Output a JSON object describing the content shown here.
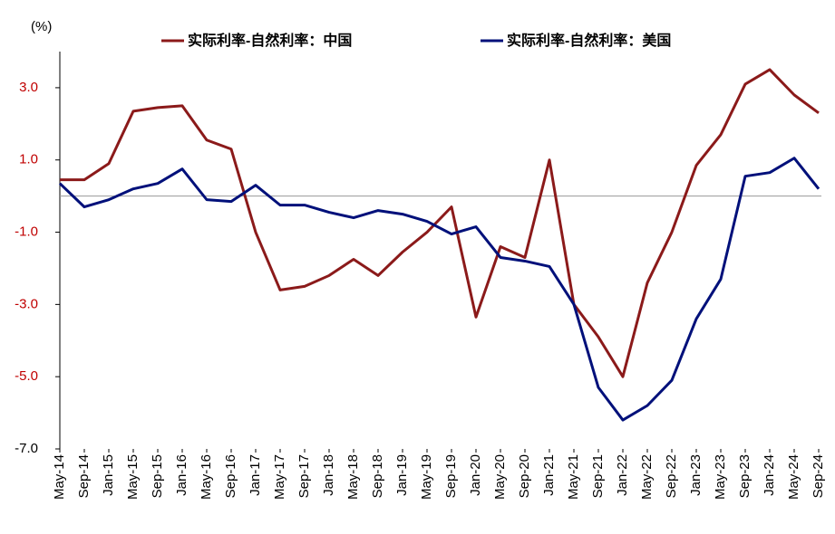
{
  "chart_data": {
    "type": "line",
    "y_unit_label": "(%)",
    "categories": [
      "May-14",
      "Sep-14",
      "Jan-15",
      "May-15",
      "Sep-15",
      "Jan-16",
      "May-16",
      "Sep-16",
      "Jan-17",
      "May-17",
      "Sep-17",
      "Jan-18",
      "May-18",
      "Sep-18",
      "Jan-19",
      "May-19",
      "Sep-19",
      "Jan-20",
      "May-20",
      "Sep-20",
      "Jan-21",
      "May-21",
      "Sep-21",
      "Jan-22",
      "May-22",
      "Sep-22",
      "Jan-23",
      "May-23",
      "Sep-23",
      "Jan-24",
      "May-24",
      "Sep-24"
    ],
    "series": [
      {
        "name": "实际利率-自然利率：中国",
        "color": "#8b1a1a",
        "values": [
          0.45,
          0.45,
          0.9,
          2.35,
          2.45,
          2.5,
          1.55,
          1.3,
          -1.0,
          -2.6,
          -2.5,
          -2.2,
          -1.75,
          -2.2,
          -1.55,
          -1.0,
          -0.3,
          -3.35,
          -1.4,
          -1.7,
          1.0,
          -3.0,
          -3.9,
          -5.0,
          -2.4,
          -1.0,
          0.85,
          1.7,
          3.1,
          3.5,
          2.8,
          2.3
        ]
      },
      {
        "name": "实际利率-自然利率：美国",
        "color": "#00107a",
        "values": [
          0.35,
          -0.3,
          -0.1,
          0.2,
          0.35,
          0.75,
          -0.1,
          -0.15,
          0.3,
          -0.25,
          -0.25,
          -0.45,
          -0.6,
          -0.4,
          -0.5,
          -0.7,
          -1.05,
          -0.85,
          -1.7,
          -1.8,
          -1.95,
          -3.0,
          -5.3,
          -6.2,
          -5.8,
          -5.1,
          -3.4,
          -2.3,
          0.55,
          0.65,
          1.05,
          0.2
        ]
      }
    ],
    "ylim": [
      -7,
      4
    ],
    "yticks": [
      {
        "value": 3,
        "label": "3.0"
      },
      {
        "value": 1,
        "label": "1.0"
      },
      {
        "value": -1,
        "label": "-1.0"
      },
      {
        "value": -3,
        "label": "-3.0"
      },
      {
        "value": -5,
        "label": "-5.0"
      },
      {
        "value": -7,
        "label": "-7.0"
      }
    ],
    "ytick_color": "#c00000",
    "zero_line": true
  }
}
